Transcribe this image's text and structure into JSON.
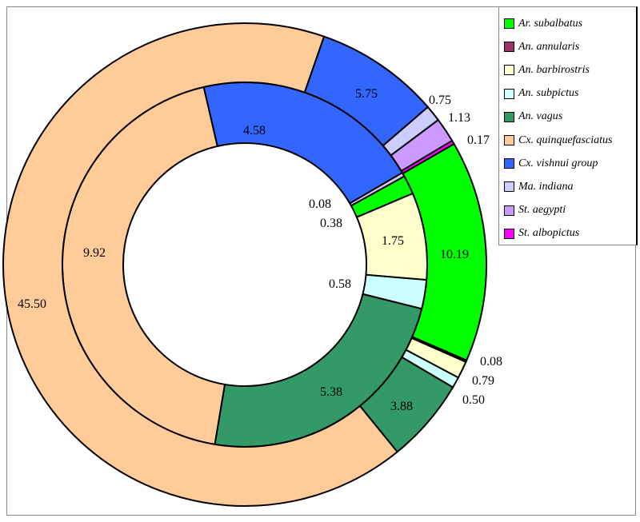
{
  "chart_data": {
    "type": "pie",
    "subtype": "double-donut",
    "title": "",
    "categories": [
      "Ar. subalbatus",
      "An. annularis",
      "An. barbirostris",
      "An. subpictus",
      "An. vagus",
      "Cx. quinquefasciatus",
      "Cx. vishnui group",
      "Ma. indiana",
      "St. aegypti",
      "St. albopictus"
    ],
    "colors": [
      "#00ff00",
      "#993366",
      "#ffffcc",
      "#ccffff",
      "#339966",
      "#ffcc99",
      "#3366ff",
      "#ccccff",
      "#cc99ff",
      "#ff00ff"
    ],
    "series": [
      {
        "name": "inner",
        "values": [
          0.38,
          0,
          1.75,
          0.58,
          5.38,
          9.92,
          4.58,
          0.08,
          0,
          0
        ],
        "labels": [
          "0.38",
          "",
          "1.75",
          "0.58",
          "5.38",
          "9.92",
          "4.58",
          "0.08",
          "",
          ""
        ]
      },
      {
        "name": "outer",
        "values": [
          10.19,
          0.08,
          0.79,
          0.5,
          3.88,
          45.5,
          5.75,
          0.75,
          1.13,
          0.17
        ],
        "labels": [
          "10.19",
          "0.08",
          "0.79",
          "0.50",
          "3.88",
          "45.50",
          "5.75",
          "0.75",
          "1.13",
          "0.17"
        ]
      }
    ],
    "legend_position": "top-right",
    "start_angle_deg": 60
  }
}
